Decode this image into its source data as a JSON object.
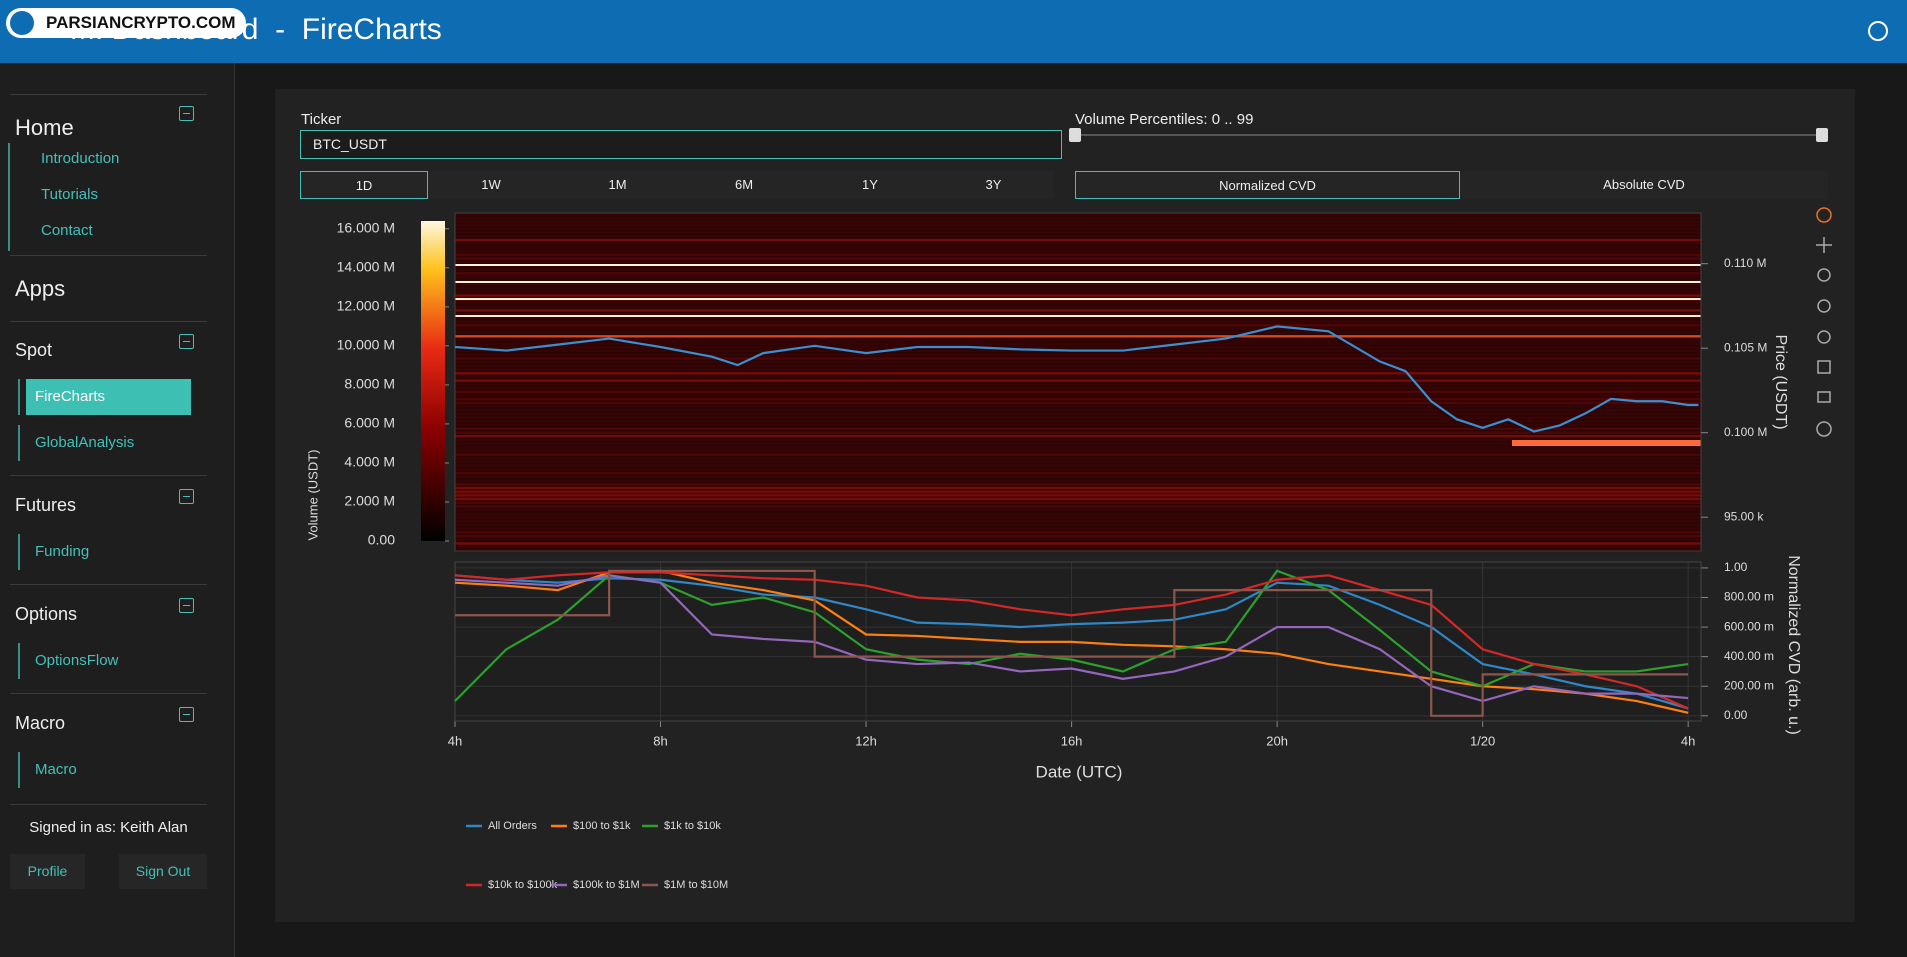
{
  "header": {
    "title": "MI Dashboard  -  FireCharts",
    "watermark": "PARSIANCRYPTO.COM"
  },
  "sidebar": {
    "home": {
      "title": "Home",
      "links": [
        "Introduction",
        "Tutorials",
        "Contact"
      ]
    },
    "apps_title": "Apps",
    "sections": [
      {
        "title": "Spot",
        "links": [
          "FireCharts",
          "GlobalAnalysis"
        ]
      },
      {
        "title": "Futures",
        "links": [
          "Funding"
        ]
      },
      {
        "title": "Options",
        "links": [
          "OptionsFlow"
        ]
      },
      {
        "title": "Macro",
        "links": [
          "Macro"
        ]
      }
    ],
    "signed_in": "Signed in as: Keith Alan",
    "buttons": [
      "Profile",
      "Sign Out"
    ]
  },
  "controls": {
    "ticker_label": "Ticker",
    "ticker_value": "BTC_USDT",
    "ranges": [
      "1D",
      "1W",
      "1M",
      "6M",
      "1Y",
      "3Y"
    ],
    "percentile_label": "Volume Percentiles: 0 .. 99",
    "cvd_modes": [
      "Normalized CVD",
      "Absolute CVD"
    ]
  },
  "chart_data": [
    {
      "type": "line",
      "ylabel": "Price (USDT)",
      "color": "#3a8fd0",
      "x": [
        0,
        1,
        2,
        3,
        4,
        5,
        5.5,
        6,
        7,
        8,
        9,
        10,
        11,
        12,
        13,
        14,
        15,
        16,
        17,
        18,
        18.5,
        19,
        19.5,
        20,
        20.5,
        21,
        21.5,
        22,
        22.5,
        23,
        23.5,
        24,
        24.2
      ],
      "values": [
        105070,
        104860,
        105210,
        105570,
        105070,
        104500,
        104000,
        104710,
        105140,
        104710,
        105070,
        105070,
        104930,
        104860,
        104860,
        105210,
        105570,
        106290,
        106000,
        104210,
        103640,
        101860,
        100790,
        100290,
        100790,
        100070,
        100430,
        101140,
        102000,
        101860,
        101860,
        101640,
        101640
      ],
      "xlim": [
        0,
        24.25
      ],
      "ylim": [
        93000,
        113000
      ],
      "yticks": [
        {
          "value": 95000,
          "label": "95.00 k"
        },
        {
          "value": 100000,
          "label": "0.100 M"
        },
        {
          "value": 105000,
          "label": "0.105 M"
        },
        {
          "value": 110000,
          "label": "0.110 M"
        }
      ],
      "colorbar": {
        "label": "Volume (USDT)",
        "lim": [
          0,
          16400000
        ],
        "ticks": [
          {
            "value": 0,
            "label": "0.00"
          },
          {
            "value": 2000000,
            "label": "2.000 M"
          },
          {
            "value": 4000000,
            "label": "4.000 M"
          },
          {
            "value": 6000000,
            "label": "6.000 M"
          },
          {
            "value": 8000000,
            "label": "8.000 M"
          },
          {
            "value": 10000000,
            "label": "10.000 M"
          },
          {
            "value": 12000000,
            "label": "12.000 M"
          },
          {
            "value": 14000000,
            "label": "14.000 M"
          },
          {
            "value": 16000000,
            "label": "16.000 M"
          }
        ]
      }
    },
    {
      "type": "line",
      "xlabel": "Date (UTC)",
      "ylabel": "Normalized CVD (arb. u.)",
      "x": [
        0,
        1,
        2,
        3,
        4,
        5,
        6,
        7,
        8,
        9,
        10,
        11,
        12,
        13,
        14,
        15,
        16,
        17,
        18,
        19,
        20,
        21,
        22,
        23,
        24
      ],
      "xlim": [
        0,
        24.25
      ],
      "xticks": [
        {
          "value": 0,
          "label": "4h"
        },
        {
          "value": 4,
          "label": "8h"
        },
        {
          "value": 8,
          "label": "12h"
        },
        {
          "value": 12,
          "label": "16h"
        },
        {
          "value": 16,
          "label": "20h"
        },
        {
          "value": 20,
          "label": "1/20"
        },
        {
          "value": 24,
          "label": "4h"
        }
      ],
      "ylim": [
        -0.035,
        1.04
      ],
      "yticks": [
        {
          "value": 0,
          "label": "0.00"
        },
        {
          "value": 0.2,
          "label": "200.00 m"
        },
        {
          "value": 0.4,
          "label": "400.00 m"
        },
        {
          "value": 0.6,
          "label": "600.00 m"
        },
        {
          "value": 0.8,
          "label": "800.00 m"
        },
        {
          "value": 1,
          "label": "1.00"
        }
      ],
      "grid": true,
      "series": [
        {
          "name": "All Orders",
          "color": "#2f87c8",
          "values": [
            0.95,
            0.92,
            0.9,
            0.93,
            0.92,
            0.88,
            0.82,
            0.8,
            0.72,
            0.63,
            0.62,
            0.6,
            0.62,
            0.63,
            0.65,
            0.72,
            0.9,
            0.88,
            0.75,
            0.6,
            0.35,
            0.28,
            0.2,
            0.15,
            0.05
          ]
        },
        {
          "name": "$100 to $1k",
          "color": "#ff7f0e",
          "values": [
            0.9,
            0.88,
            0.85,
            0.97,
            0.98,
            0.9,
            0.85,
            0.78,
            0.55,
            0.54,
            0.52,
            0.5,
            0.5,
            0.48,
            0.47,
            0.45,
            0.42,
            0.35,
            0.3,
            0.25,
            0.2,
            0.18,
            0.15,
            0.1,
            0.02
          ]
        },
        {
          "name": "$1k to $10k",
          "color": "#2ca02c",
          "values": [
            0.1,
            0.45,
            0.65,
            0.95,
            0.9,
            0.75,
            0.8,
            0.7,
            0.45,
            0.38,
            0.35,
            0.42,
            0.38,
            0.3,
            0.45,
            0.5,
            0.98,
            0.85,
            0.58,
            0.3,
            0.2,
            0.35,
            0.3,
            0.3,
            0.35
          ]
        },
        {
          "name": "$10k to $100k",
          "color": "#d62728",
          "values": [
            0.95,
            0.92,
            0.95,
            0.97,
            0.97,
            0.95,
            0.93,
            0.92,
            0.88,
            0.8,
            0.78,
            0.72,
            0.68,
            0.72,
            0.75,
            0.82,
            0.92,
            0.95,
            0.85,
            0.75,
            0.45,
            0.35,
            0.28,
            0.2,
            0.05
          ]
        },
        {
          "name": "$100k to $1M",
          "color": "#9467bd",
          "values": [
            0.92,
            0.9,
            0.88,
            0.95,
            0.9,
            0.55,
            0.52,
            0.5,
            0.38,
            0.35,
            0.36,
            0.3,
            0.32,
            0.25,
            0.3,
            0.4,
            0.6,
            0.6,
            0.45,
            0.2,
            0.1,
            0.2,
            0.15,
            0.15,
            0.12
          ]
        },
        {
          "name": "$1M to $10M",
          "color": "#8c564b",
          "step": true,
          "values": [
            0.68,
            0.68,
            0.68,
            0.98,
            0.98,
            0.98,
            0.98,
            0.4,
            0.4,
            0.4,
            0.4,
            0.4,
            0.4,
            0.4,
            0.85,
            0.85,
            0.85,
            0.85,
            0.85,
            0,
            0.28,
            0.28,
            0.28,
            0.28,
            0.28
          ]
        }
      ]
    }
  ]
}
